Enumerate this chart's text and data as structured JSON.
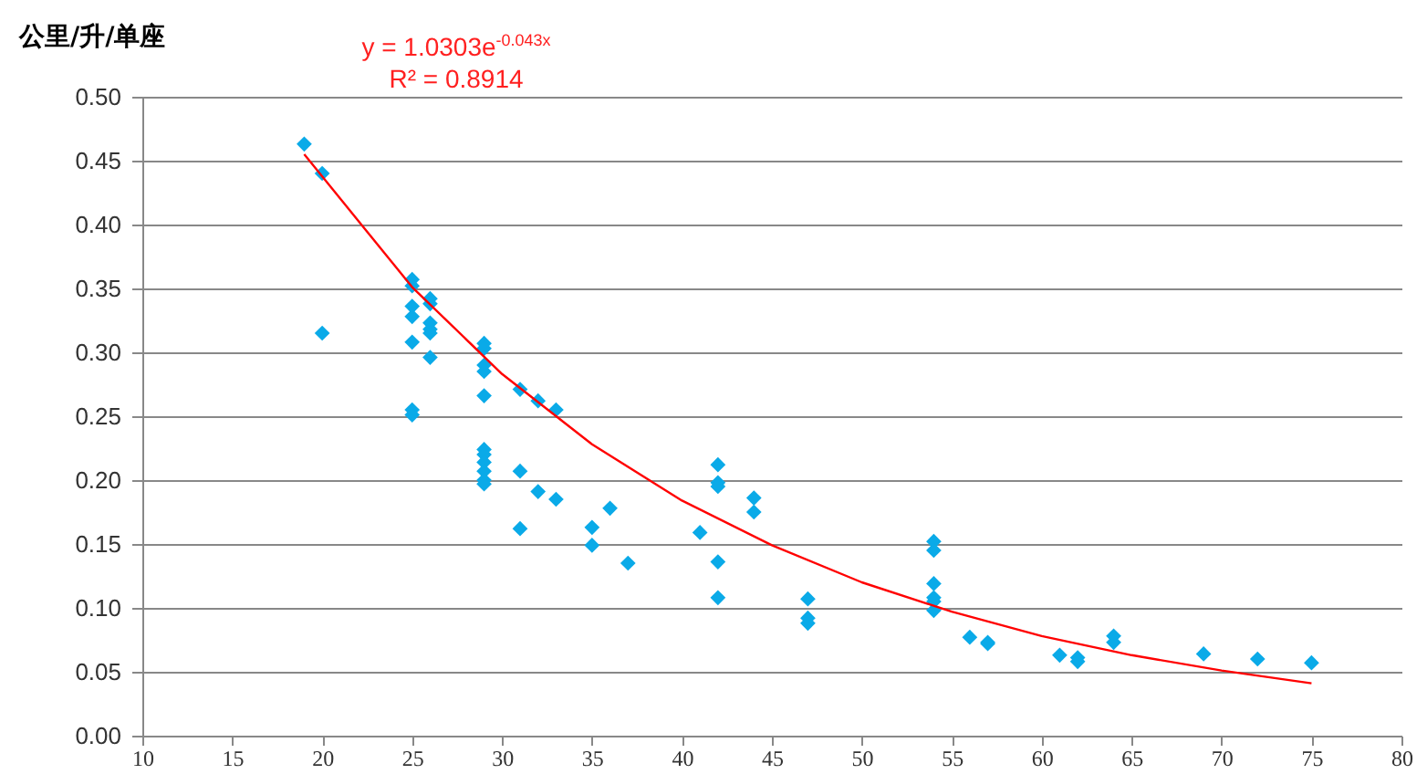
{
  "chart_data": {
    "type": "scatter",
    "ylabel": "公里/升/单座",
    "annotations": [
      "y = 1.0303e$^{-0.043x}$",
      "R² = 0.8914"
    ],
    "xlim": [
      10,
      80
    ],
    "xticks": [
      10,
      15,
      20,
      25,
      30,
      35,
      40,
      45,
      50,
      55,
      60,
      65,
      70,
      75,
      80
    ],
    "ylim": [
      0,
      0.5
    ],
    "yticks": [
      {
        "value": 0,
        "label": "0.00"
      },
      {
        "value": 0.05,
        "label": "0.05"
      },
      {
        "value": 0.1,
        "label": "0.10"
      },
      {
        "value": 0.15,
        "label": "0.15"
      },
      {
        "value": 0.2,
        "label": "0.20"
      },
      {
        "value": 0.25,
        "label": "0.25"
      },
      {
        "value": 0.3,
        "label": "0.30"
      },
      {
        "value": 0.35,
        "label": "0.35"
      },
      {
        "value": 0.4,
        "label": "0.40"
      },
      {
        "value": 0.45,
        "label": "0.45"
      },
      {
        "value": 0.5,
        "label": "0.50"
      }
    ],
    "grid": "y",
    "marker": "diamond",
    "series": [
      {
        "color": "#0aaae8",
        "x": [
          19,
          20,
          20,
          25,
          25,
          25,
          25,
          25,
          25,
          25,
          26,
          26,
          26,
          26,
          26,
          26,
          29,
          29,
          29,
          29,
          29,
          29,
          29,
          29,
          29,
          29,
          29,
          31,
          31,
          31,
          32,
          32,
          33,
          33,
          35,
          35,
          36,
          37,
          41,
          42,
          42,
          42,
          42,
          42,
          44,
          44,
          47,
          47,
          47,
          54,
          54,
          54,
          54,
          54,
          54,
          56,
          57,
          57,
          61,
          62,
          62,
          64,
          64,
          69,
          72,
          75
        ],
        "values": [
          0.463,
          0.44,
          0.315,
          0.357,
          0.352,
          0.336,
          0.328,
          0.308,
          0.255,
          0.251,
          0.342,
          0.338,
          0.323,
          0.318,
          0.315,
          0.296,
          0.307,
          0.303,
          0.29,
          0.285,
          0.266,
          0.224,
          0.22,
          0.214,
          0.207,
          0.2,
          0.197,
          0.271,
          0.207,
          0.162,
          0.262,
          0.191,
          0.255,
          0.185,
          0.163,
          0.149,
          0.178,
          0.135,
          0.159,
          0.212,
          0.198,
          0.195,
          0.136,
          0.108,
          0.186,
          0.175,
          0.107,
          0.092,
          0.088,
          0.152,
          0.145,
          0.119,
          0.108,
          0.105,
          0.098,
          0.077,
          0.073,
          0.072,
          0.063,
          0.061,
          0.058,
          0.078,
          0.073,
          0.064,
          0.06,
          0.057
        ]
      },
      {
        "type": "line",
        "color": "#ff0000",
        "marker": "none",
        "x": [
          19,
          25,
          30,
          35,
          40,
          45,
          50,
          55,
          60,
          65,
          70,
          75
        ],
        "values": [
          0.455,
          0.351,
          0.283,
          0.228,
          0.184,
          0.149,
          0.12,
          0.097,
          0.078,
          0.063,
          0.051,
          0.041
        ]
      }
    ]
  }
}
